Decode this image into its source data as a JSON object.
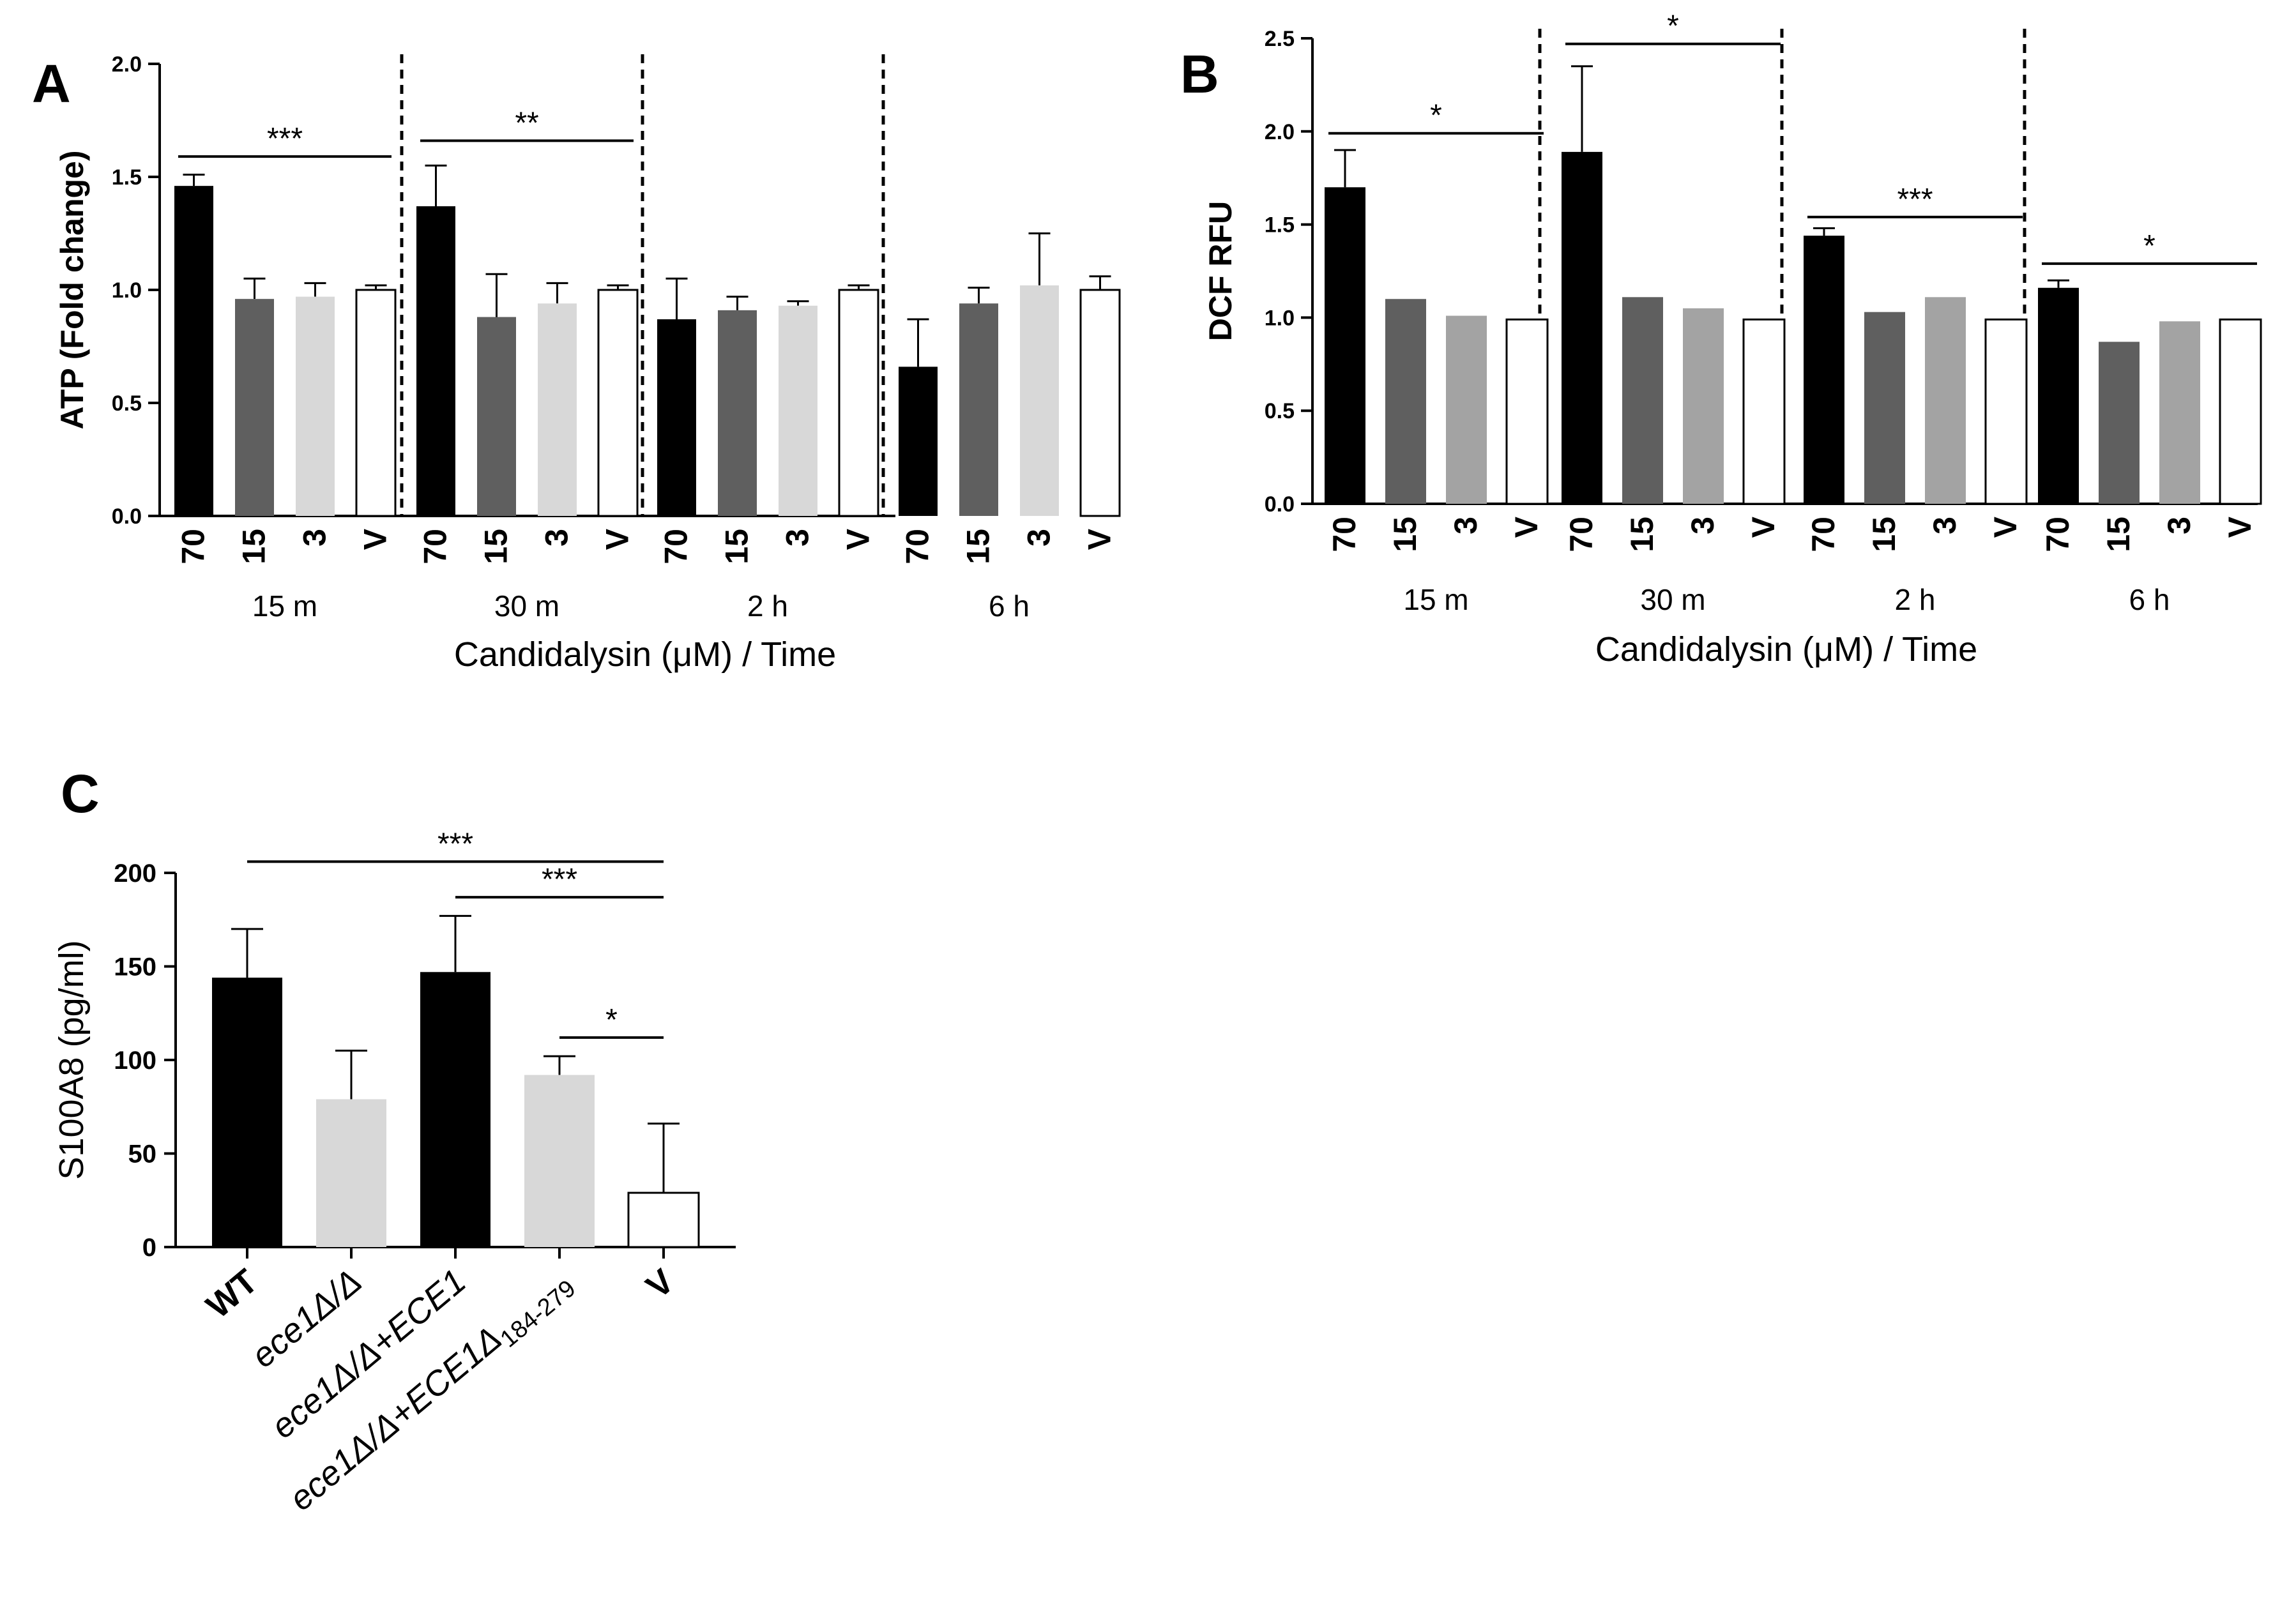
{
  "chart_data": [
    {
      "panel": "A",
      "type": "bar",
      "ylabel": "ATP (Fold change)",
      "xlabel": "Candidalysin (μM) / Time",
      "ylim": [
        0,
        2.0
      ],
      "yticks": [
        "0.0",
        "0.5",
        "1.0",
        "1.5",
        "2.0"
      ],
      "groups": [
        {
          "label": "15 m",
          "categories": [
            "70",
            "15",
            "3",
            "V"
          ],
          "values": [
            1.46,
            0.96,
            0.97,
            1.0
          ],
          "errors": [
            0.05,
            0.09,
            0.06,
            0.02
          ]
        },
        {
          "label": "30 m",
          "categories": [
            "70",
            "15",
            "3",
            "V"
          ],
          "values": [
            1.37,
            0.88,
            0.94,
            1.0
          ],
          "errors": [
            0.18,
            0.19,
            0.09,
            0.02
          ]
        },
        {
          "label": "2 h",
          "categories": [
            "70",
            "15",
            "3",
            "V"
          ],
          "values": [
            0.87,
            0.91,
            0.93,
            1.0
          ],
          "errors": [
            0.18,
            0.06,
            0.02,
            0.02
          ]
        },
        {
          "label": "6 h",
          "categories": [
            "70",
            "15",
            "3",
            "V"
          ],
          "values": [
            0.66,
            0.94,
            1.02,
            1.0
          ],
          "errors": [
            0.21,
            0.07,
            0.23,
            0.06
          ]
        }
      ],
      "significance": [
        {
          "group": 0,
          "from": 0,
          "to": 3,
          "y": 1.59,
          "label": "***"
        },
        {
          "group": 1,
          "from": 0,
          "to": 3,
          "y": 1.66,
          "label": "**"
        }
      ]
    },
    {
      "panel": "B",
      "type": "bar",
      "ylabel": "DCF RFU",
      "xlabel": "Candidalysin (μM) / Time",
      "ylim": [
        0,
        2.5
      ],
      "yticks": [
        "0.0",
        "0.5",
        "1.0",
        "1.5",
        "2.0",
        "2.5"
      ],
      "groups": [
        {
          "label": "15 m",
          "categories": [
            "70",
            "15",
            "3",
            "V"
          ],
          "values": [
            1.7,
            1.1,
            1.01,
            0.99
          ],
          "errors": [
            0.2,
            0,
            0,
            0
          ]
        },
        {
          "label": "30 m",
          "categories": [
            "70",
            "15",
            "3",
            "V"
          ],
          "values": [
            1.89,
            1.11,
            1.05,
            0.99
          ],
          "errors": [
            0.46,
            0,
            0,
            0
          ]
        },
        {
          "label": "2 h",
          "categories": [
            "70",
            "15",
            "3",
            "V"
          ],
          "values": [
            1.44,
            1.03,
            1.11,
            0.99
          ],
          "errors": [
            0.04,
            0,
            0,
            0
          ]
        },
        {
          "label": "6 h",
          "categories": [
            "70",
            "15",
            "3",
            "V"
          ],
          "values": [
            1.16,
            0.87,
            0.98,
            0.99
          ],
          "errors": [
            0.04,
            0,
            0,
            0
          ]
        }
      ],
      "significance": [
        {
          "group": 0,
          "from": 0,
          "to": 3,
          "y": 1.99,
          "label": "*"
        },
        {
          "group": 1,
          "from": 0,
          "to": 3,
          "y": 2.47,
          "label": "*"
        },
        {
          "group": 2,
          "from": 0,
          "to": 3,
          "y": 1.54,
          "label": "***"
        },
        {
          "group": 3,
          "from": 0,
          "to": 3,
          "y": 1.29,
          "label": "*"
        }
      ]
    },
    {
      "panel": "C",
      "type": "bar",
      "ylabel": "S100A8 (pg/ml)",
      "xlabel": "",
      "ylim": [
        0,
        200
      ],
      "yticks": [
        "0",
        "50",
        "100",
        "150",
        "200"
      ],
      "categories": [
        "WT",
        "ece1Δ/Δ",
        "ece1Δ/Δ+ECE1",
        "ece1Δ/Δ+ECE1Δ",
        "V"
      ],
      "category_subscript": {
        "3": "184-279"
      },
      "values": [
        144,
        79,
        147,
        92,
        29
      ],
      "errors": [
        26,
        26,
        30,
        10,
        37
      ],
      "significance": [
        {
          "from": 0,
          "to": 4,
          "y": 206,
          "label": "***"
        },
        {
          "from": 2,
          "to": 4,
          "y": 187,
          "label": "***"
        },
        {
          "from": 3,
          "to": 4,
          "y": 112,
          "label": "*"
        }
      ]
    }
  ],
  "colors": {
    "c70": "#000000",
    "c15": "#5f5f5f",
    "c3_A": "#d8d8d8",
    "c3_B": "#a3a3a3",
    "vehicle": "#ffffff",
    "light": "#d8d8d8",
    "axis": "#000000"
  }
}
